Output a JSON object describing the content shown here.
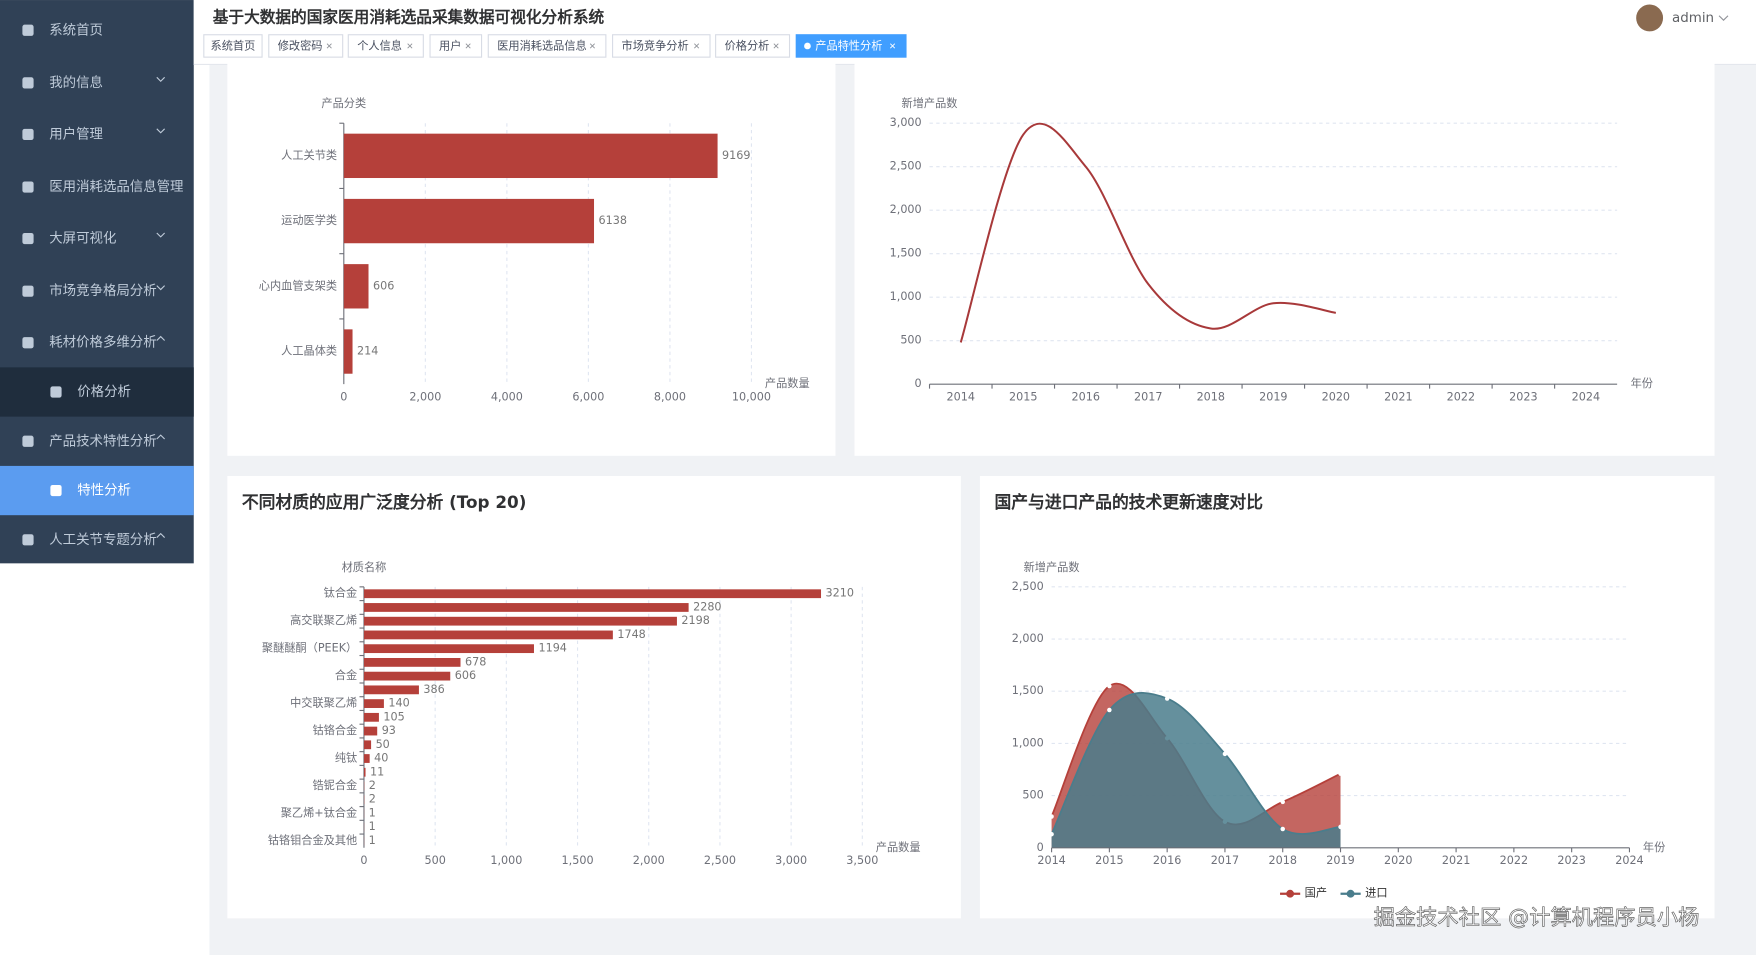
{
  "sidebar": {
    "items": [
      "系统首页",
      "我的信息",
      "用户管理",
      "医用消耗选品信息管理",
      "大屏可视化",
      "市场竞争格局分析",
      "耗材价格多维分析",
      "价格分析",
      "产品技术特性分析",
      "特性分析",
      "人工关节专题分析"
    ]
  },
  "header": {
    "title": "基于大数据的国家医用消耗选品采集数据可视化分析系统",
    "user": "admin",
    "tabs": [
      "系统首页",
      "修改密码",
      "个人信息",
      "用户",
      "医用消耗选品信息",
      "市场竞争分析",
      "价格分析",
      "产品特性分析"
    ]
  },
  "chart_data": [
    {
      "type": "bar",
      "orientation": "horizontal",
      "y_axis_label": "产品分类",
      "x_axis_label": "产品数量",
      "categories": [
        "人工关节类",
        "运动医学类",
        "心内血管支架类",
        "人工晶体类"
      ],
      "values": [
        9169,
        6138,
        606,
        214
      ],
      "color": "#b5403a",
      "xlim": [
        0,
        10000
      ],
      "xticks": [
        0,
        {
          "value": 2000,
          "label": "2,000"
        },
        {
          "value": 4000,
          "label": "4,000"
        },
        {
          "value": 6000,
          "label": "6,000"
        },
        {
          "value": 8000,
          "label": "8,000"
        },
        {
          "value": 10000,
          "label": "10,000"
        }
      ],
      "grid": true
    },
    {
      "type": "line",
      "y_axis_label": "新增产品数",
      "x_axis_label": "年份",
      "categories": [
        "2014",
        "2015",
        "2016",
        "2017",
        "2018",
        "2019",
        "2020",
        "2021",
        "2022",
        "2023",
        "2024"
      ],
      "values": [
        480,
        2870,
        2500,
        1150,
        640,
        930,
        820,
        null,
        null,
        null,
        null
      ],
      "color": "#a8393a",
      "ylim": [
        0,
        3000
      ],
      "yticks": [
        0,
        500,
        {
          "value": 1000,
          "label": "1,000"
        },
        {
          "value": 1500,
          "label": "1,500"
        },
        {
          "value": 2000,
          "label": "2,000"
        },
        {
          "value": 2500,
          "label": "2,500"
        },
        {
          "value": 3000,
          "label": "3,000"
        }
      ],
      "grid": true
    },
    {
      "type": "bar",
      "orientation": "horizontal",
      "title": "不同材质的应用广泛度分析 (Top 20)",
      "y_axis_label": "材质名称",
      "x_axis_label": "产品数量",
      "categories": [
        "钛合金",
        null,
        "高交联聚乙烯",
        null,
        "聚醚醚酮（PEEK）",
        null,
        "合金",
        null,
        "中交联聚乙烯",
        null,
        "钴铬合金",
        null,
        "纯钛",
        null,
        "锆铌合金",
        null,
        "聚乙烯+钛合金",
        null,
        "钴铬钼合金及其他"
      ],
      "values": [
        3210,
        2280,
        2198,
        1748,
        1194,
        678,
        606,
        386,
        140,
        105,
        93,
        50,
        40,
        11,
        2,
        2,
        1,
        1,
        1
      ],
      "color": "#b5403a",
      "xlim": [
        0,
        3500
      ],
      "xticks": [
        0,
        500,
        {
          "value": 1000,
          "label": "1,000"
        },
        {
          "value": 1500,
          "label": "1,500"
        },
        {
          "value": 2000,
          "label": "2,000"
        },
        {
          "value": 2500,
          "label": "2,500"
        },
        {
          "value": 3000,
          "label": "3,000"
        },
        {
          "value": 3500,
          "label": "3,500"
        }
      ],
      "grid": true
    },
    {
      "type": "area",
      "title": "国产与进口产品的技术更新速度对比",
      "y_axis_label": "新增产品数",
      "x_axis_label": "年份",
      "categories": [
        "2014",
        "2015",
        "2016",
        "2017",
        "2018",
        "2019",
        "2020",
        "2021",
        "2022",
        "2023",
        "2024"
      ],
      "series": [
        {
          "name": "国产",
          "color": "#b5403a",
          "values": [
            300,
            1550,
            1050,
            250,
            440,
            710,
            null,
            null,
            null,
            null,
            null
          ]
        },
        {
          "name": "进口",
          "color": "#4a7d8c",
          "values": [
            130,
            1320,
            1430,
            900,
            180,
            200,
            null,
            null,
            null,
            null,
            null
          ]
        }
      ],
      "ylim": [
        0,
        2500
      ],
      "yticks": [
        0,
        500,
        {
          "value": 1000,
          "label": "1,000"
        },
        {
          "value": 1500,
          "label": "1,500"
        },
        {
          "value": 2000,
          "label": "2,000"
        },
        {
          "value": 2500,
          "label": "2,500"
        }
      ],
      "grid": true,
      "legend": "bottom"
    }
  ],
  "watermark": "掘金技术社区 @计算机程序员小杨"
}
